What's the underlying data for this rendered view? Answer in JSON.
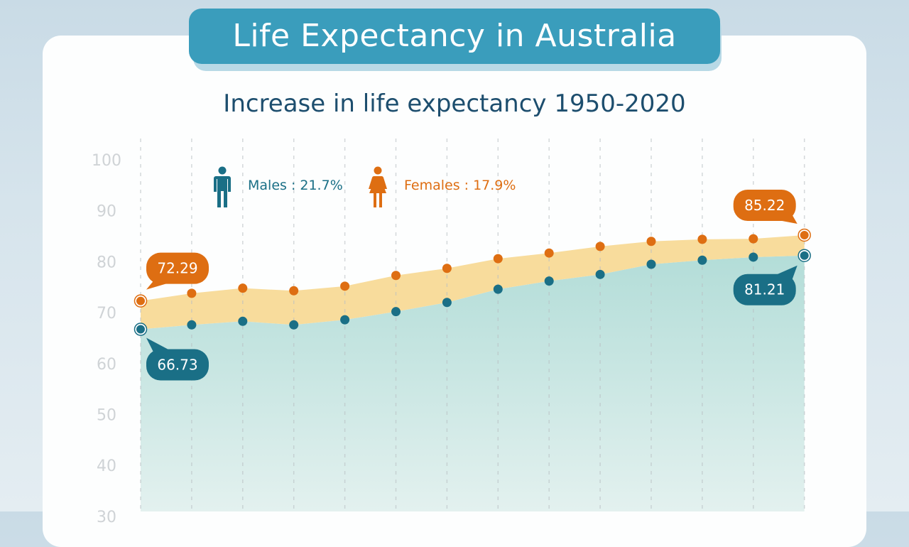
{
  "title": "Life Expectancy in Australia",
  "subtitle": "Increase in life expectancy 1950-2020",
  "legend": {
    "males": {
      "label": "Males : 21.7%",
      "icon": "male-person-icon",
      "color": "#1a6f86"
    },
    "females": {
      "label": "Females : 17.9%",
      "icon": "female-person-icon",
      "color": "#de6e12"
    }
  },
  "colors": {
    "banner": "#3a9dbc",
    "male_fill": "#b3ddd8",
    "female_band": "#f8dc9c"
  },
  "chart_data": {
    "type": "area",
    "title": "Increase in life expectancy 1950-2020",
    "ylim": [
      30,
      100
    ],
    "yticks": [
      30,
      40,
      50,
      60,
      70,
      80,
      90,
      100
    ],
    "grid": "vertical dashed",
    "legend_placement": "top-left",
    "series": [
      {
        "name": "Females",
        "values": [
          72.29,
          73.8,
          74.8,
          74.3,
          75.2,
          77.3,
          78.7,
          80.6,
          81.7,
          83.0,
          84.0,
          84.4,
          84.5,
          85.22
        ],
        "color": "#de6e12"
      },
      {
        "name": "Males",
        "values": [
          66.73,
          67.6,
          68.3,
          67.6,
          68.6,
          70.2,
          72.0,
          74.6,
          76.2,
          77.5,
          79.5,
          80.3,
          80.9,
          81.21
        ],
        "color": "#1a6f86"
      }
    ],
    "data_labels": [
      {
        "series": "Females",
        "index": 0,
        "text": "72.29"
      },
      {
        "series": "Males",
        "index": 0,
        "text": "66.73"
      },
      {
        "series": "Females",
        "index": 13,
        "text": "85.22"
      },
      {
        "series": "Males",
        "index": 13,
        "text": "81.21"
      }
    ]
  }
}
